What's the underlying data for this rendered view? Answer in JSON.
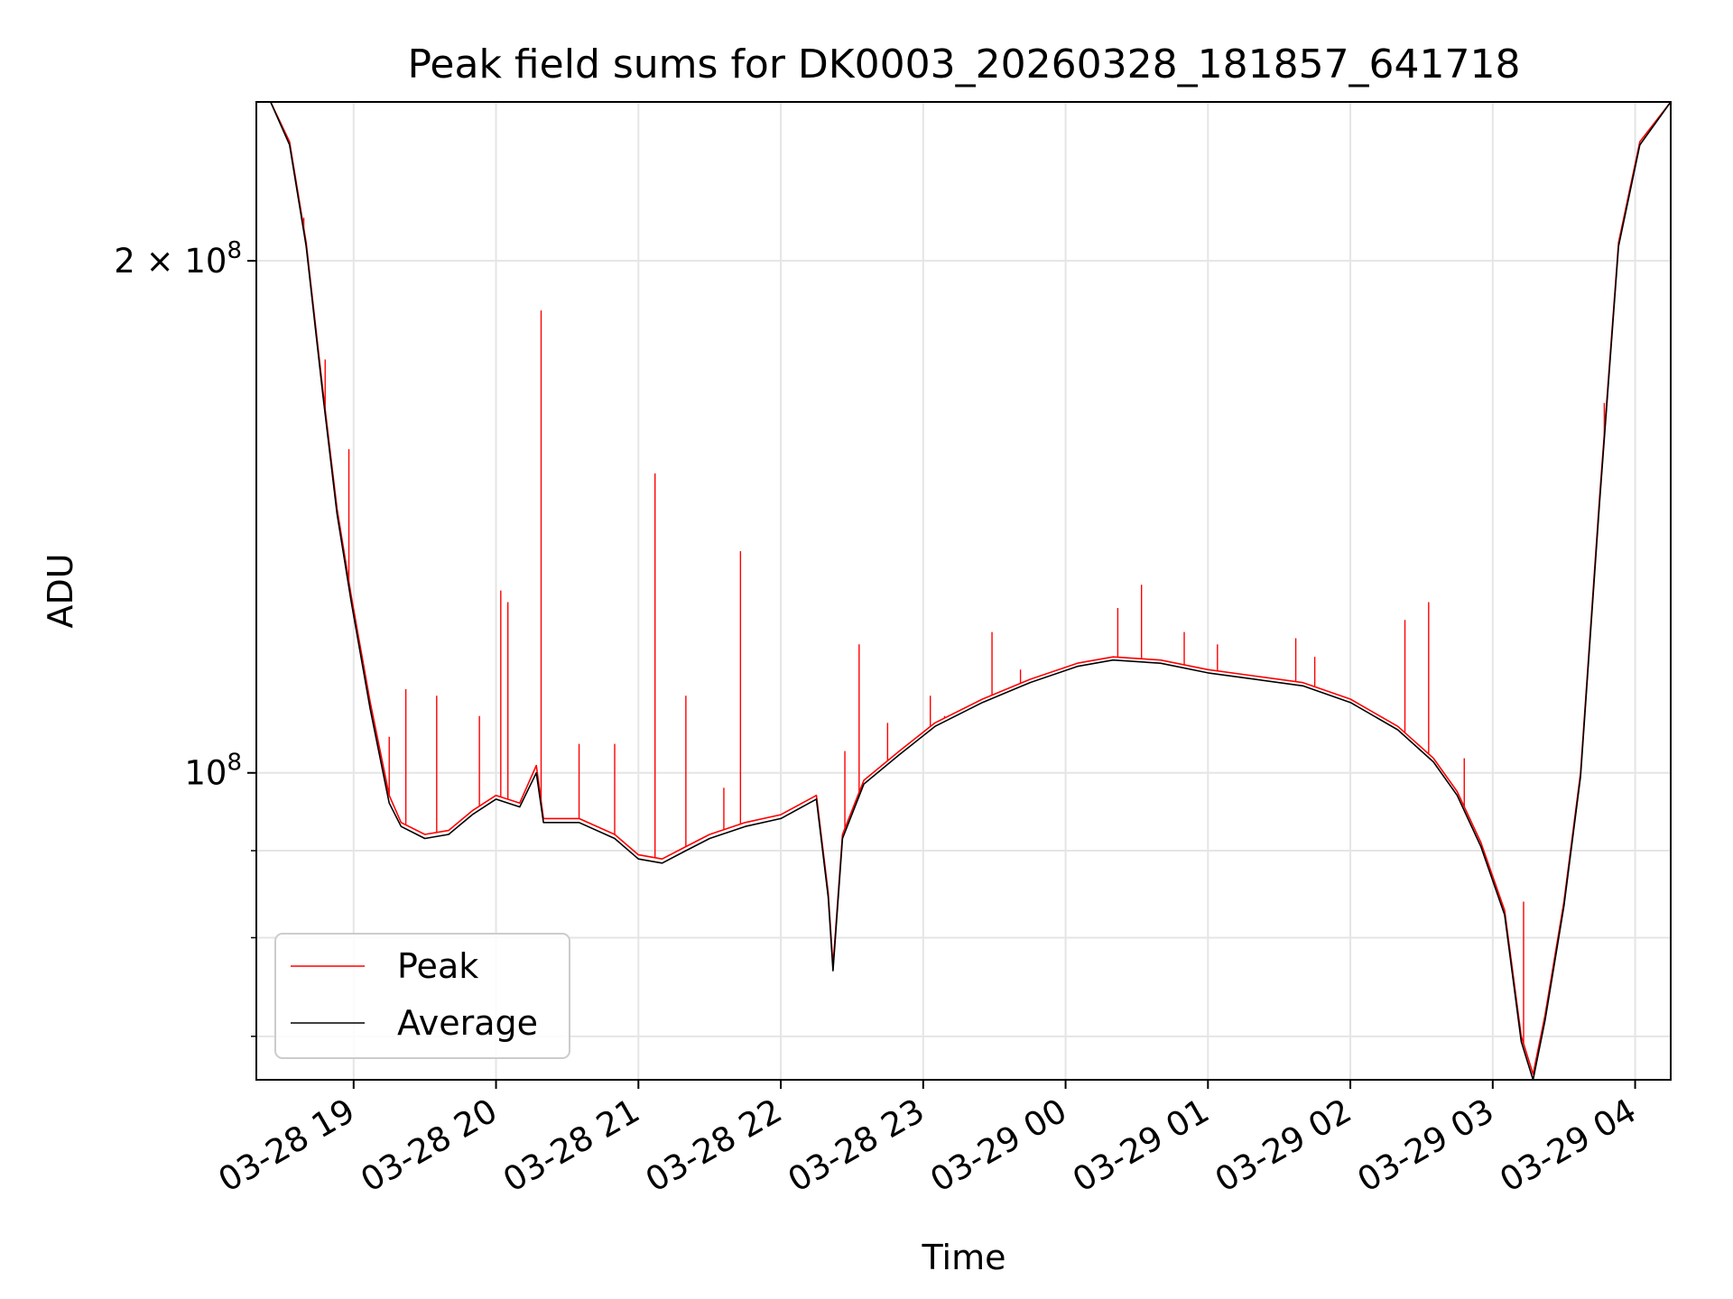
{
  "chart_data": {
    "type": "line",
    "title": "Peak field sums for DK0003_20260328_181857_641718",
    "xlabel": "Time",
    "ylabel": "ADU",
    "y_scale": "log",
    "x_range": [
      "2026-03-28 18:19",
      "2026-03-29 04:15"
    ],
    "ylim": [
      66000000,
      248000000
    ],
    "x_ticks": [
      {
        "t": "2026-03-28 19:00",
        "label": "03-28 19"
      },
      {
        "t": "2026-03-28 20:00",
        "label": "03-28 20"
      },
      {
        "t": "2026-03-28 21:00",
        "label": "03-28 21"
      },
      {
        "t": "2026-03-28 22:00",
        "label": "03-28 22"
      },
      {
        "t": "2026-03-28 23:00",
        "label": "03-28 23"
      },
      {
        "t": "2026-03-29 00:00",
        "label": "03-29 00"
      },
      {
        "t": "2026-03-29 01:00",
        "label": "03-29 01"
      },
      {
        "t": "2026-03-29 02:00",
        "label": "03-29 02"
      },
      {
        "t": "2026-03-29 03:00",
        "label": "03-29 03"
      },
      {
        "t": "2026-03-29 04:00",
        "label": "03-29 04"
      }
    ],
    "y_major_ticks": [
      {
        "value": 100000000,
        "label_base": "10",
        "label_exp": "8"
      },
      {
        "value": 200000000,
        "label_base": "2 × 10",
        "label_exp": "8"
      }
    ],
    "y_minor_ticks": [
      70000000,
      80000000,
      90000000
    ],
    "grid": true,
    "legend_position": "lower-left",
    "series": [
      {
        "name": "Peak",
        "color": "#ff0000",
        "points": [
          [
            "2026-03-28 18:19",
            248000000
          ],
          [
            "2026-03-28 18:25",
            248000000
          ],
          [
            "2026-03-28 18:33",
            235000000
          ],
          [
            "2026-03-28 18:40",
            205000000
          ],
          [
            "2026-03-28 18:47",
            168000000
          ],
          [
            "2026-03-28 18:53",
            143000000
          ],
          [
            "2026-03-28 18:59",
            127000000
          ],
          [
            "2026-03-28 19:07",
            110000000
          ],
          [
            "2026-03-28 19:15",
            97000000
          ],
          [
            "2026-03-28 19:20",
            93500000
          ],
          [
            "2026-03-28 19:30",
            92000000
          ],
          [
            "2026-03-28 19:40",
            92500000
          ],
          [
            "2026-03-28 19:50",
            95000000
          ],
          [
            "2026-03-28 20:00",
            97000000
          ],
          [
            "2026-03-28 20:10",
            96000000
          ],
          [
            "2026-03-28 20:17",
            101000000
          ],
          [
            "2026-03-28 20:20",
            94000000
          ],
          [
            "2026-03-28 20:35",
            94000000
          ],
          [
            "2026-03-28 20:50",
            92000000
          ],
          [
            "2026-03-28 21:00",
            89500000
          ],
          [
            "2026-03-28 21:10",
            89000000
          ],
          [
            "2026-03-28 21:20",
            90500000
          ],
          [
            "2026-03-28 21:30",
            92000000
          ],
          [
            "2026-03-28 21:45",
            93500000
          ],
          [
            "2026-03-28 22:00",
            94500000
          ],
          [
            "2026-03-28 22:15",
            97000000
          ],
          [
            "2026-03-28 22:20",
            85000000
          ],
          [
            "2026-03-28 22:22",
            77000000
          ],
          [
            "2026-03-28 22:26",
            92000000
          ],
          [
            "2026-03-28 22:35",
            99000000
          ],
          [
            "2026-03-28 22:50",
            103000000
          ],
          [
            "2026-03-28 23:05",
            107000000
          ],
          [
            "2026-03-28 23:25",
            110500000
          ],
          [
            "2026-03-28 23:45",
            113500000
          ],
          [
            "2026-03-29 00:05",
            116000000
          ],
          [
            "2026-03-29 00:20",
            117000000
          ],
          [
            "2026-03-29 00:40",
            116500000
          ],
          [
            "2026-03-29 01:00",
            115000000
          ],
          [
            "2026-03-29 01:20",
            114000000
          ],
          [
            "2026-03-29 01:40",
            113000000
          ],
          [
            "2026-03-29 02:00",
            110500000
          ],
          [
            "2026-03-29 02:20",
            106500000
          ],
          [
            "2026-03-29 02:35",
            102000000
          ],
          [
            "2026-03-29 02:45",
            97500000
          ],
          [
            "2026-03-29 02:55",
            91000000
          ],
          [
            "2026-03-29 03:05",
            83000000
          ],
          [
            "2026-03-29 03:12",
            70000000
          ],
          [
            "2026-03-29 03:17",
            66500000
          ],
          [
            "2026-03-29 03:22",
            72000000
          ],
          [
            "2026-03-29 03:30",
            84000000
          ],
          [
            "2026-03-29 03:37",
            100000000
          ],
          [
            "2026-03-29 03:45",
            145000000
          ],
          [
            "2026-03-29 03:53",
            205000000
          ],
          [
            "2026-03-29 04:02",
            235000000
          ],
          [
            "2026-03-29 04:15",
            248000000
          ]
        ],
        "spikes": [
          [
            "2026-03-28 18:39",
            212000000
          ],
          [
            "2026-03-28 18:48",
            175000000
          ],
          [
            "2026-03-28 18:58",
            155000000
          ],
          [
            "2026-03-28 19:15",
            105000000
          ],
          [
            "2026-03-28 19:22",
            112000000
          ],
          [
            "2026-03-28 19:35",
            111000000
          ],
          [
            "2026-03-28 19:53",
            108000000
          ],
          [
            "2026-03-28 20:02",
            128000000
          ],
          [
            "2026-03-28 20:05",
            126000000
          ],
          [
            "2026-03-28 20:19",
            187000000
          ],
          [
            "2026-03-28 20:35",
            104000000
          ],
          [
            "2026-03-28 20:50",
            104000000
          ],
          [
            "2026-03-28 21:07",
            150000000
          ],
          [
            "2026-03-28 21:20",
            111000000
          ],
          [
            "2026-03-28 21:36",
            98000000
          ],
          [
            "2026-03-28 21:43",
            135000000
          ],
          [
            "2026-03-28 22:27",
            103000000
          ],
          [
            "2026-03-28 22:33",
            119000000
          ],
          [
            "2026-03-28 22:45",
            107000000
          ],
          [
            "2026-03-28 23:03",
            111000000
          ],
          [
            "2026-03-28 23:09",
            108000000
          ],
          [
            "2026-03-28 23:29",
            121000000
          ],
          [
            "2026-03-28 23:41",
            115000000
          ],
          [
            "2026-03-29 00:22",
            125000000
          ],
          [
            "2026-03-29 00:32",
            129000000
          ],
          [
            "2026-03-29 00:50",
            121000000
          ],
          [
            "2026-03-29 01:04",
            119000000
          ],
          [
            "2026-03-29 01:37",
            120000000
          ],
          [
            "2026-03-29 01:45",
            117000000
          ],
          [
            "2026-03-29 02:23",
            123000000
          ],
          [
            "2026-03-29 02:33",
            126000000
          ],
          [
            "2026-03-29 02:48",
            102000000
          ],
          [
            "2026-03-29 03:13",
            84000000
          ],
          [
            "2026-03-29 03:47",
            165000000
          ]
        ]
      },
      {
        "name": "Average",
        "color": "#000000",
        "points": [
          [
            "2026-03-28 18:19",
            248000000
          ],
          [
            "2026-03-28 18:25",
            248000000
          ],
          [
            "2026-03-28 18:33",
            234000000
          ],
          [
            "2026-03-28 18:40",
            204000000
          ],
          [
            "2026-03-28 18:47",
            167000000
          ],
          [
            "2026-03-28 18:53",
            142000000
          ],
          [
            "2026-03-28 18:59",
            126000000
          ],
          [
            "2026-03-28 19:07",
            109000000
          ],
          [
            "2026-03-28 19:15",
            96000000
          ],
          [
            "2026-03-28 19:20",
            93000000
          ],
          [
            "2026-03-28 19:30",
            91500000
          ],
          [
            "2026-03-28 19:40",
            92000000
          ],
          [
            "2026-03-28 19:50",
            94500000
          ],
          [
            "2026-03-28 20:00",
            96500000
          ],
          [
            "2026-03-28 20:10",
            95500000
          ],
          [
            "2026-03-28 20:17",
            100000000
          ],
          [
            "2026-03-28 20:20",
            93500000
          ],
          [
            "2026-03-28 20:35",
            93500000
          ],
          [
            "2026-03-28 20:50",
            91500000
          ],
          [
            "2026-03-28 21:00",
            89000000
          ],
          [
            "2026-03-28 21:10",
            88500000
          ],
          [
            "2026-03-28 21:20",
            90000000
          ],
          [
            "2026-03-28 21:30",
            91500000
          ],
          [
            "2026-03-28 21:45",
            93000000
          ],
          [
            "2026-03-28 22:00",
            94000000
          ],
          [
            "2026-03-28 22:15",
            96500000
          ],
          [
            "2026-03-28 22:20",
            84500000
          ],
          [
            "2026-03-28 22:22",
            76500000
          ],
          [
            "2026-03-28 22:26",
            91500000
          ],
          [
            "2026-03-28 22:35",
            98500000
          ],
          [
            "2026-03-28 22:50",
            102500000
          ],
          [
            "2026-03-28 23:05",
            106500000
          ],
          [
            "2026-03-28 23:25",
            110000000
          ],
          [
            "2026-03-28 23:45",
            113000000
          ],
          [
            "2026-03-29 00:05",
            115500000
          ],
          [
            "2026-03-29 00:20",
            116500000
          ],
          [
            "2026-03-29 00:40",
            116000000
          ],
          [
            "2026-03-29 01:00",
            114500000
          ],
          [
            "2026-03-29 01:20",
            113500000
          ],
          [
            "2026-03-29 01:40",
            112500000
          ],
          [
            "2026-03-29 02:00",
            110000000
          ],
          [
            "2026-03-29 02:20",
            106000000
          ],
          [
            "2026-03-29 02:35",
            101500000
          ],
          [
            "2026-03-29 02:45",
            97000000
          ],
          [
            "2026-03-29 02:55",
            90500000
          ],
          [
            "2026-03-29 03:05",
            82500000
          ],
          [
            "2026-03-29 03:12",
            69500000
          ],
          [
            "2026-03-29 03:17",
            66000000
          ],
          [
            "2026-03-29 03:22",
            71500000
          ],
          [
            "2026-03-29 03:30",
            83500000
          ],
          [
            "2026-03-29 03:37",
            99500000
          ],
          [
            "2026-03-29 03:45",
            144000000
          ],
          [
            "2026-03-29 03:53",
            204000000
          ],
          [
            "2026-03-29 04:02",
            234000000
          ],
          [
            "2026-03-29 04:15",
            248000000
          ]
        ]
      }
    ]
  }
}
